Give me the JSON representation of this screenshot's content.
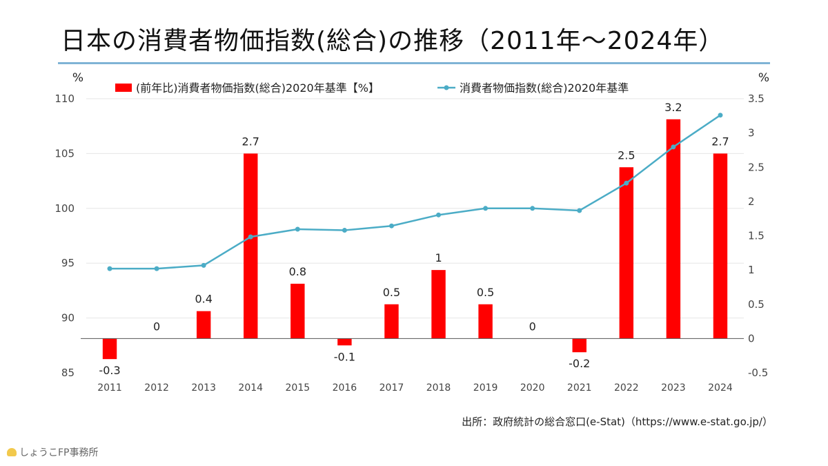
{
  "title": "日本の消費者物価指数(総合)の推移（2011年～2024年）",
  "source": "出所：政府統計の総合窓口(e-Stat)（https://www.e-stat.go.jp/）",
  "brand": "しょうこFP事務所",
  "colors": {
    "bar": "#ff0000",
    "line": "#4bacc6",
    "rule": "#7fb3d5"
  },
  "chart_data": {
    "type": "bar",
    "categories": [
      "2011",
      "2012",
      "2013",
      "2014",
      "2015",
      "2016",
      "2017",
      "2018",
      "2019",
      "2020",
      "2021",
      "2022",
      "2023",
      "2024"
    ],
    "left_axis": {
      "unit": "%",
      "min": 85,
      "max": 110,
      "ticks": [
        85,
        90,
        95,
        100,
        105,
        110
      ]
    },
    "right_axis": {
      "unit": "%",
      "min": -0.5,
      "max": 3.5,
      "ticks": [
        "-0.5",
        "0",
        "0.5",
        "1",
        "1.5",
        "2",
        "2.5",
        "3",
        "3.5"
      ]
    },
    "series": [
      {
        "name": "(前年比)消費者物価指数(総合)2020年基準【%】",
        "kind": "bar",
        "axis": "right",
        "values": [
          -0.3,
          0,
          0.4,
          2.7,
          0.8,
          -0.1,
          0.5,
          1,
          0.5,
          0,
          -0.2,
          2.5,
          3.2,
          2.7
        ],
        "labels": [
          "-0.3",
          "0",
          "0.4",
          "2.7",
          "0.8",
          "-0.1",
          "0.5",
          "1",
          "0.5",
          "0",
          "-0.2",
          "2.5",
          "3.2",
          "2.7"
        ]
      },
      {
        "name": "消費者物価指数(総合)2020年基準",
        "kind": "line",
        "axis": "left",
        "values": [
          94.5,
          94.5,
          94.8,
          97.4,
          98.1,
          98.0,
          98.4,
          99.4,
          100.0,
          100.0,
          99.8,
          102.3,
          105.6,
          108.5
        ]
      }
    ],
    "legend_position": "top"
  }
}
